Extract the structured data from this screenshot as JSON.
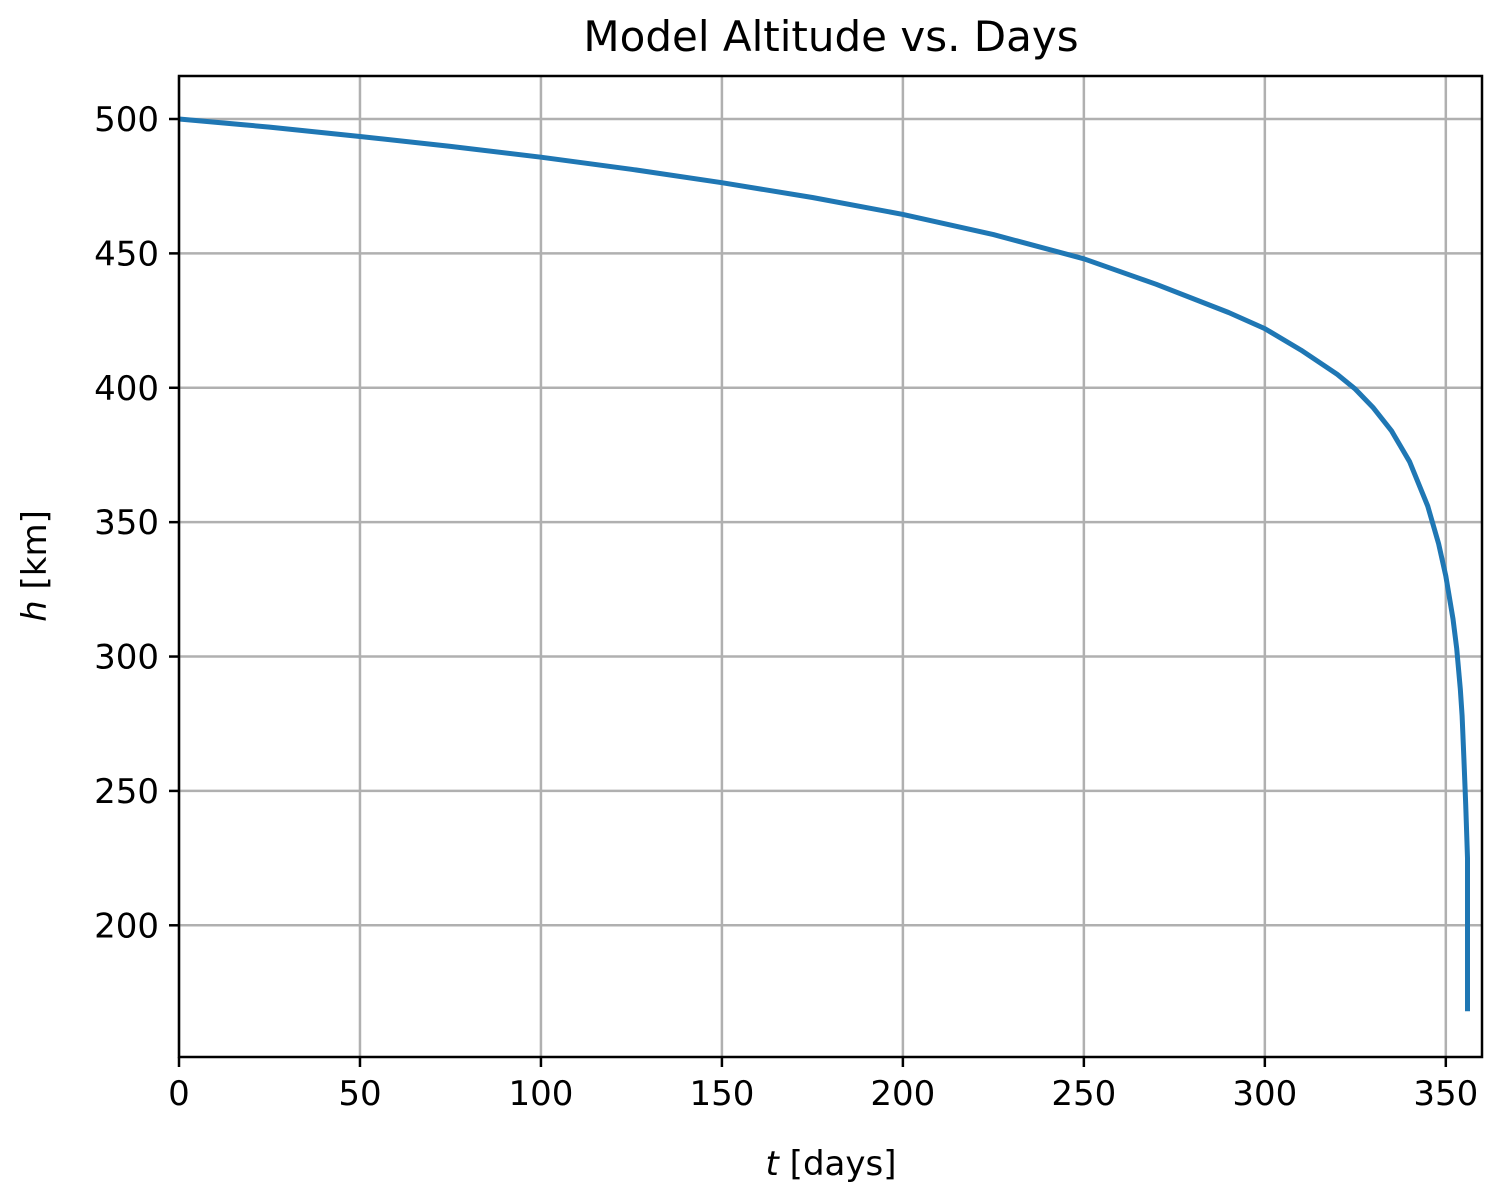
{
  "chart_data": {
    "type": "line",
    "title": "Model Altitude vs. Days",
    "xlabel": {
      "var": "t",
      "unit": " [days]"
    },
    "ylabel": {
      "var": "h",
      "unit": " [km]"
    },
    "xlim": [
      0,
      360
    ],
    "ylim": [
      151,
      516
    ],
    "xticks": [
      0,
      50,
      100,
      150,
      200,
      250,
      300,
      350
    ],
    "yticks": [
      200,
      250,
      300,
      350,
      400,
      450,
      500
    ],
    "grid": true,
    "series": [
      {
        "color": "#1f77b4",
        "x": [
          0,
          25,
          50,
          75,
          100,
          125,
          150,
          175,
          200,
          225,
          250,
          270,
          290,
          300,
          310,
          320,
          325,
          330,
          335,
          340,
          345,
          348,
          350,
          352,
          353,
          354,
          354.5,
          355,
          355.5,
          356,
          356,
          356
        ],
        "y": [
          500,
          497,
          493.5,
          489.8,
          485.8,
          481.3,
          476.3,
          470.8,
          464.5,
          457,
          448,
          438.5,
          428,
          422,
          414,
          405,
          399.5,
          392.5,
          384,
          372.5,
          356,
          342,
          330,
          314,
          303,
          288,
          278,
          262,
          245,
          225,
          210,
          168
        ]
      }
    ]
  }
}
